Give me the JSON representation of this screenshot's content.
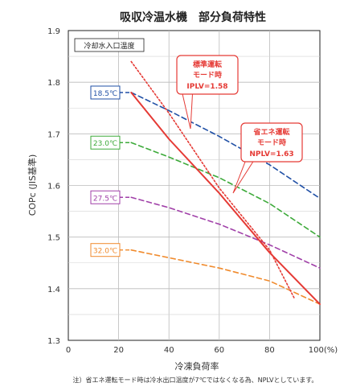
{
  "chart_data": {
    "type": "line",
    "title": "吸収冷温水機　部分負荷特性",
    "xlabel": "冷凍負荷率",
    "ylabel": "COPc (JIS基準)",
    "xlim": [
      0,
      100
    ],
    "ylim": [
      1.3,
      1.9
    ],
    "x_ticks": [
      "0",
      "20",
      "40",
      "60",
      "80",
      "100(%)"
    ],
    "y_ticks": [
      "1.3",
      "1.4",
      "1.5",
      "1.6",
      "1.7",
      "1.8",
      "1.9"
    ],
    "legend_title": "冷却水入口温度",
    "series": [
      {
        "name": "18.5℃",
        "color": "#1f4fa5",
        "style": "dashed",
        "x": [
          25,
          40,
          60,
          80,
          100
        ],
        "y": [
          1.78,
          1.745,
          1.695,
          1.64,
          1.575
        ]
      },
      {
        "name": "23.0℃",
        "color": "#3daa3a",
        "style": "dashed",
        "x": [
          25,
          40,
          60,
          80,
          100
        ],
        "y": [
          1.683,
          1.655,
          1.615,
          1.565,
          1.5
        ]
      },
      {
        "name": "27.5℃",
        "color": "#a03fa8",
        "style": "dashed",
        "x": [
          25,
          40,
          60,
          80,
          100
        ],
        "y": [
          1.577,
          1.557,
          1.525,
          1.485,
          1.44
        ]
      },
      {
        "name": "32.0℃",
        "color": "#f08a2c",
        "style": "dashed",
        "x": [
          25,
          40,
          60,
          80,
          100
        ],
        "y": [
          1.475,
          1.46,
          1.44,
          1.415,
          1.37
        ]
      },
      {
        "name": "標準運転モード時 IPLV=1.58",
        "color": "#e53a35",
        "style": "dotted",
        "x": [
          25,
          40,
          60,
          80,
          90
        ],
        "y": [
          1.84,
          1.74,
          1.595,
          1.475,
          1.38
        ]
      },
      {
        "name": "省エネ運転モード時 NPLV=1.63",
        "color": "#e53a35",
        "style": "solid",
        "x": [
          25,
          40,
          60,
          80,
          100
        ],
        "y": [
          1.78,
          1.69,
          1.585,
          1.47,
          1.37
        ]
      }
    ],
    "annotations": {
      "standard_mode": [
        "標準運転",
        "モード時",
        "IPLV=1.58"
      ],
      "eco_mode": [
        "省エネ運転",
        "モード時",
        "NPLV=1.63"
      ]
    },
    "footnote": "注）省エネ運転モード時は冷水出口温度が7℃ではなくなる為、NPLVとしています。"
  }
}
